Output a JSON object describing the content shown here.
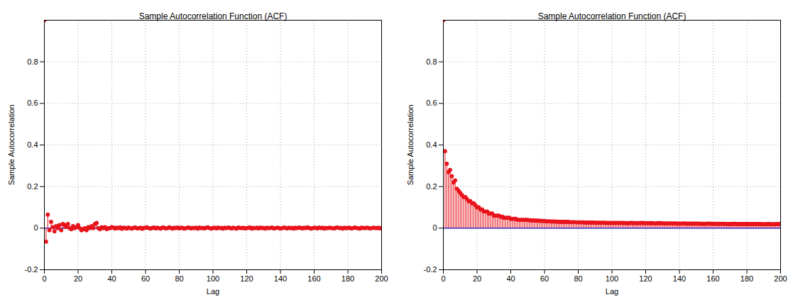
{
  "chart_data": [
    {
      "type": "stem",
      "title": "Sample Autocorrelation Function (ACF)",
      "x_label": "Lag",
      "y_label": "Sample Autocorrelation",
      "xlim": [
        0,
        200
      ],
      "xticks": [
        0,
        20,
        40,
        60,
        80,
        100,
        120,
        140,
        160,
        180,
        200
      ],
      "ylim": [
        -0.2,
        1
      ],
      "yticks": [
        -0.2,
        0,
        0.2,
        0.4,
        0.6,
        0.8
      ],
      "grid": true,
      "series": [
        {
          "name": "ACF",
          "color": "#e8141c",
          "marker": "circle",
          "x": [
            0,
            1,
            2,
            3,
            4,
            5,
            6,
            7,
            8,
            9,
            10,
            11,
            12,
            13,
            14,
            15,
            16,
            17,
            18,
            19,
            20,
            21,
            22,
            23,
            24,
            25,
            26,
            27,
            28,
            29,
            30,
            31,
            32,
            33,
            34,
            35,
            36,
            37,
            38,
            39,
            40,
            41,
            42,
            43,
            44,
            45,
            46,
            47,
            48,
            49,
            50,
            51,
            52,
            53,
            54,
            55,
            56,
            57,
            58,
            59,
            60,
            61,
            62,
            63,
            64,
            65,
            66,
            67,
            68,
            69,
            70,
            71,
            72,
            73,
            74,
            75,
            76,
            77,
            78,
            79,
            80,
            81,
            82,
            83,
            84,
            85,
            86,
            87,
            88,
            89,
            90,
            91,
            92,
            93,
            94,
            95,
            96,
            97,
            98,
            99,
            100,
            101,
            102,
            103,
            104,
            105,
            106,
            107,
            108,
            109,
            110,
            111,
            112,
            113,
            114,
            115,
            116,
            117,
            118,
            119,
            120,
            121,
            122,
            123,
            124,
            125,
            126,
            127,
            128,
            129,
            130,
            131,
            132,
            133,
            134,
            135,
            136,
            137,
            138,
            139,
            140,
            141,
            142,
            143,
            144,
            145,
            146,
            147,
            148,
            149,
            150,
            151,
            152,
            153,
            154,
            155,
            156,
            157,
            158,
            159,
            160,
            161,
            162,
            163,
            164,
            165,
            166,
            167,
            168,
            169,
            170,
            171,
            172,
            173,
            174,
            175,
            176,
            177,
            178,
            179,
            180,
            181,
            182,
            183,
            184,
            185,
            186,
            187,
            188,
            189,
            190,
            191,
            192,
            193,
            194,
            195,
            196,
            197,
            198,
            199,
            200
          ],
          "values": [
            1,
            -0.065,
            0.065,
            -0.01,
            0.03,
            0.005,
            -0.015,
            0.01,
            0.0,
            0.015,
            -0.01,
            0.02,
            0.015,
            0.005,
            0.02,
            0.0,
            -0.005,
            0.01,
            0.0,
            0.005,
            0.015,
            0.0,
            -0.01,
            -0.005,
            0.0,
            -0.01,
            0.005,
            0.0,
            0.01,
            0.0,
            0.02,
            0.025,
            0.0,
            -0.005,
            0.005,
            0.0,
            0.005,
            -0.005,
            0.0,
            0.0,
            0.005,
            0.003,
            -0.002,
            0.002,
            0.0,
            0.004,
            -0.003,
            0.002,
            0.001,
            -0.002,
            0.003,
            0.0,
            -0.002,
            0.002,
            0.003,
            -0.001,
            0.0,
            0.002,
            -0.003,
            0.001,
            0.002,
            0.004,
            0.0,
            -0.002,
            0.001,
            0.003,
            -0.001,
            0.002,
            0.0,
            -0.002,
            0.003,
            0.002,
            -0.001,
            0.0,
            0.004,
            0.001,
            -0.002,
            0.002,
            0.0,
            0.003,
            -0.001,
            0.002,
            0.001,
            -0.002,
            0.0,
            0.003,
            0.002,
            -0.001,
            0.001,
            0.0,
            0.002,
            -0.002,
            0.003,
            0.0,
            0.001,
            -0.001,
            0.002,
            0.004,
            0.0,
            -0.002,
            0.001,
            0.002,
            -0.001,
            0.003,
            0.0,
            0.001,
            -0.002,
            0.002,
            0.0,
            0.003,
            0.001,
            -0.001,
            0.002,
            0.0,
            -0.002,
            0.003,
            0.001,
            0.0,
            0.002,
            -0.001,
            0.0,
            0.002,
            0.003,
            -0.002,
            0.001,
            0.0,
            0.002,
            -0.001,
            0.003,
            0.0,
            0.001,
            -0.002,
            0.002,
            0.0,
            0.001,
            0.003,
            -0.001,
            0.0,
            0.002,
            0.001,
            -0.002,
            0.0,
            0.003,
            0.001,
            -0.001,
            0.002,
            0.0,
            0.001,
            -0.002,
            0.002,
            0.0,
            0.003,
            0.001,
            -0.001,
            0.002,
            0.0,
            0.004,
            0.001,
            -0.002,
            0.0,
            0.002,
            0.001,
            -0.001,
            0.003,
            0.0,
            0.002,
            -0.002,
            0.001,
            0.0,
            0.002,
            0.001,
            0.0,
            -0.001,
            0.002,
            0.003,
            0.0,
            0.001,
            -0.002,
            0.002,
            0.0,
            0.001,
            0.002,
            -0.001,
            0.0,
            0.003,
            0.001,
            0.0,
            -0.002,
            0.002,
            0.001,
            0.0,
            0.002,
            0.001,
            -0.001,
            0.0,
            0.002,
            0.001,
            0.0,
            0.002,
            -0.001,
            0.001
          ]
        }
      ]
    },
    {
      "type": "stem",
      "title": "Sample Autocorrelation Function (ACF)",
      "x_label": "Lag",
      "y_label": "Sample Autocorrelation",
      "xlim": [
        0,
        200
      ],
      "xticks": [
        0,
        20,
        40,
        60,
        80,
        100,
        120,
        140,
        160,
        180,
        200
      ],
      "ylim": [
        -0.2,
        1
      ],
      "yticks": [
        -0.2,
        0,
        0.2,
        0.4,
        0.6,
        0.8
      ],
      "grid": true,
      "series": [
        {
          "name": "ACF",
          "color": "#e8141c",
          "marker": "circle",
          "x": [
            0,
            1,
            2,
            3,
            4,
            5,
            6,
            7,
            8,
            9,
            10,
            11,
            12,
            13,
            14,
            15,
            16,
            17,
            18,
            19,
            20,
            21,
            22,
            23,
            24,
            25,
            26,
            27,
            28,
            29,
            30,
            31,
            32,
            33,
            34,
            35,
            36,
            37,
            38,
            39,
            40,
            41,
            42,
            43,
            44,
            45,
            46,
            47,
            48,
            49,
            50,
            51,
            52,
            53,
            54,
            55,
            56,
            57,
            58,
            59,
            60,
            61,
            62,
            63,
            64,
            65,
            66,
            67,
            68,
            69,
            70,
            71,
            72,
            73,
            74,
            75,
            76,
            77,
            78,
            79,
            80,
            81,
            82,
            83,
            84,
            85,
            86,
            87,
            88,
            89,
            90,
            91,
            92,
            93,
            94,
            95,
            96,
            97,
            98,
            99,
            100,
            101,
            102,
            103,
            104,
            105,
            106,
            107,
            108,
            109,
            110,
            111,
            112,
            113,
            114,
            115,
            116,
            117,
            118,
            119,
            120,
            121,
            122,
            123,
            124,
            125,
            126,
            127,
            128,
            129,
            130,
            131,
            132,
            133,
            134,
            135,
            136,
            137,
            138,
            139,
            140,
            141,
            142,
            143,
            144,
            145,
            146,
            147,
            148,
            149,
            150,
            151,
            152,
            153,
            154,
            155,
            156,
            157,
            158,
            159,
            160,
            161,
            162,
            163,
            164,
            165,
            166,
            167,
            168,
            169,
            170,
            171,
            172,
            173,
            174,
            175,
            176,
            177,
            178,
            179,
            180,
            181,
            182,
            183,
            184,
            185,
            186,
            187,
            188,
            189,
            190,
            191,
            192,
            193,
            194,
            195,
            196,
            197,
            198,
            199,
            200
          ],
          "values": [
            1,
            0.37,
            0.31,
            0.27,
            0.28,
            0.25,
            0.22,
            0.23,
            0.19,
            0.18,
            0.17,
            0.16,
            0.15,
            0.15,
            0.14,
            0.13,
            0.13,
            0.12,
            0.12,
            0.11,
            0.1,
            0.1,
            0.09,
            0.09,
            0.08,
            0.08,
            0.08,
            0.07,
            0.07,
            0.07,
            0.06,
            0.06,
            0.06,
            0.06,
            0.055,
            0.055,
            0.05,
            0.05,
            0.05,
            0.05,
            0.045,
            0.045,
            0.045,
            0.045,
            0.04,
            0.04,
            0.04,
            0.04,
            0.04,
            0.04,
            0.04,
            0.038,
            0.038,
            0.037,
            0.037,
            0.036,
            0.036,
            0.035,
            0.035,
            0.034,
            0.034,
            0.033,
            0.033,
            0.033,
            0.032,
            0.032,
            0.032,
            0.031,
            0.031,
            0.031,
            0.03,
            0.03,
            0.03,
            0.03,
            0.03,
            0.029,
            0.029,
            0.029,
            0.029,
            0.028,
            0.028,
            0.028,
            0.028,
            0.028,
            0.027,
            0.027,
            0.027,
            0.027,
            0.027,
            0.027,
            0.026,
            0.026,
            0.026,
            0.026,
            0.026,
            0.026,
            0.026,
            0.025,
            0.025,
            0.025,
            0.025,
            0.025,
            0.025,
            0.025,
            0.025,
            0.025,
            0.025,
            0.025,
            0.024,
            0.024,
            0.024,
            0.025,
            0.025,
            0.024,
            0.024,
            0.024,
            0.024,
            0.025,
            0.025,
            0.024,
            0.024,
            0.024,
            0.024,
            0.024,
            0.024,
            0.023,
            0.023,
            0.024,
            0.024,
            0.024,
            0.023,
            0.023,
            0.023,
            0.023,
            0.023,
            0.023,
            0.023,
            0.023,
            0.023,
            0.022,
            0.022,
            0.022,
            0.023,
            0.023,
            0.022,
            0.022,
            0.022,
            0.022,
            0.022,
            0.022,
            0.022,
            0.022,
            0.022,
            0.021,
            0.021,
            0.021,
            0.021,
            0.022,
            0.022,
            0.021,
            0.021,
            0.021,
            0.021,
            0.021,
            0.021,
            0.021,
            0.021,
            0.021,
            0.02,
            0.02,
            0.02,
            0.02,
            0.021,
            0.021,
            0.02,
            0.02,
            0.02,
            0.02,
            0.02,
            0.02,
            0.02,
            0.02,
            0.02,
            0.02,
            0.02,
            0.02,
            0.02,
            0.02,
            0.02,
            0.019,
            0.019,
            0.019,
            0.02,
            0.02,
            0.019,
            0.019,
            0.019,
            0.019,
            0.02,
            0.02,
            0.02
          ]
        }
      ]
    }
  ]
}
